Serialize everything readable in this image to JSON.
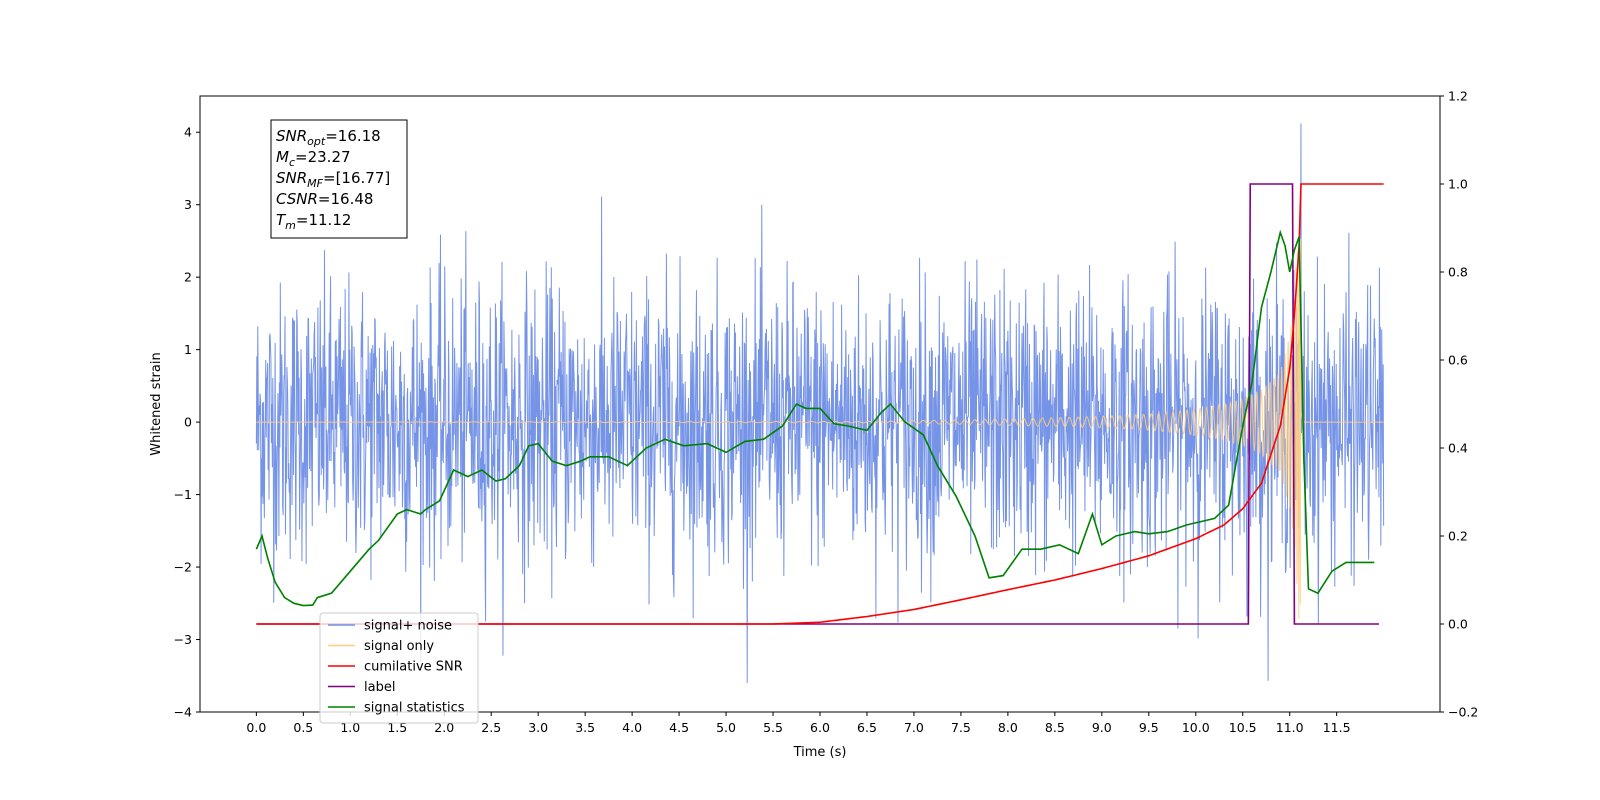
{
  "chart_data": {
    "type": "line",
    "xlabel": "Time (s)",
    "ylabel": "Whitened strain",
    "xlim": [
      -0.6,
      12.6
    ],
    "ylim_left": [
      -4,
      4.5
    ],
    "ylim_right": [
      -0.2,
      1.2
    ],
    "x_ticks": [
      0.0,
      0.5,
      1.0,
      1.5,
      2.0,
      2.5,
      3.0,
      3.5,
      4.0,
      4.5,
      5.0,
      5.5,
      6.0,
      6.5,
      7.0,
      7.5,
      8.0,
      8.5,
      9.0,
      9.5,
      10.0,
      10.5,
      11.0,
      11.5
    ],
    "x_tick_labels": [
      "0.0",
      "0.5",
      "1.0",
      "1.5",
      "2.0",
      "2.5",
      "3.0",
      "3.5",
      "4.0",
      "4.5",
      "5.0",
      "5.5",
      "6.0",
      "6.5",
      "7.0",
      "7.5",
      "8.0",
      "8.5",
      "9.0",
      "9.5",
      "10.0",
      "10.5",
      "11.0",
      "11.5"
    ],
    "y_left_ticks": [
      -4,
      -3,
      -2,
      -1,
      0,
      1,
      2,
      3,
      4
    ],
    "y_left_tick_labels": [
      "−4",
      "−3",
      "−2",
      "−1",
      "0",
      "1",
      "2",
      "3",
      "4"
    ],
    "y_right_ticks": [
      -0.2,
      0.0,
      0.2,
      0.4,
      0.6,
      0.8,
      1.0,
      1.2
    ],
    "y_right_tick_labels": [
      "−0.2",
      "0.0",
      "0.2",
      "0.4",
      "0.6",
      "0.8",
      "1.0",
      "1.2"
    ],
    "info_box": [
      {
        "base": "SNR",
        "sub": "opt",
        "rest": "=16.18"
      },
      {
        "base": "M",
        "sub": "c",
        "rest": "=23.27"
      },
      {
        "base": "SNR",
        "sub": "MF",
        "rest": "=[16.77]"
      },
      {
        "base": "CSNR",
        "sub": "",
        "rest": "=16.48"
      },
      {
        "base": "T",
        "sub": "m",
        "rest": "=11.12"
      }
    ],
    "legend": [
      {
        "label": "signal+ noise",
        "color": "#6f8ee6"
      },
      {
        "label": "signal only",
        "color": "#ffcc80"
      },
      {
        "label": "cumilative SNR",
        "color": "#ff0000"
      },
      {
        "label": "label",
        "color": "#800080"
      },
      {
        "label": "signal statistics",
        "color": "#008000"
      }
    ],
    "legend_loc": "lower left",
    "series": [
      {
        "name": "signal+ noise",
        "axis": "left",
        "color": "#6f8ee6",
        "kind": "noise",
        "x_range": [
          0.0,
          12.0
        ],
        "amplitude_peak_range": [
          -3.6,
          3.4
        ],
        "max_spike": {
          "x": 11.12,
          "y": 4.12
        }
      },
      {
        "name": "signal only",
        "axis": "left",
        "color": "#ffcc80",
        "kind": "chirp",
        "x_range": [
          0.0,
          12.0
        ],
        "merger_time": 11.12,
        "amplitude_points": {
          "x": [
            0.0,
            6.5,
            7.5,
            8.5,
            9.0,
            9.5,
            10.0,
            10.3,
            10.5,
            10.7,
            10.9,
            11.0,
            11.05,
            11.1,
            11.12,
            11.14,
            12.0
          ],
          "y": [
            0.0,
            0.01,
            0.03,
            0.06,
            0.08,
            0.11,
            0.18,
            0.25,
            0.32,
            0.45,
            0.7,
            1.2,
            1.8,
            2.8,
            3.3,
            0.0,
            0.0
          ]
        }
      },
      {
        "name": "cumilative SNR",
        "axis": "right",
        "color": "#ff0000",
        "x": [
          0.0,
          5.5,
          6.0,
          6.5,
          7.0,
          7.5,
          8.0,
          8.5,
          9.0,
          9.5,
          10.0,
          10.3,
          10.5,
          10.7,
          10.9,
          11.0,
          11.05,
          11.1,
          11.12,
          12.0
        ],
        "y": [
          0.0,
          0.0,
          0.004,
          0.017,
          0.033,
          0.055,
          0.078,
          0.1,
          0.126,
          0.155,
          0.194,
          0.225,
          0.262,
          0.32,
          0.45,
          0.58,
          0.7,
          0.86,
          1.0,
          1.0
        ]
      },
      {
        "name": "label",
        "axis": "right",
        "color": "#800080",
        "x": [
          0.0,
          10.56,
          10.58,
          11.03,
          11.05,
          11.95
        ],
        "y": [
          0.0,
          0.0,
          1.0,
          1.0,
          0.0,
          0.0
        ]
      },
      {
        "name": "signal statistics",
        "axis": "right",
        "color": "#008000",
        "x": [
          0.0,
          0.06,
          0.12,
          0.2,
          0.3,
          0.4,
          0.5,
          0.6,
          0.65,
          0.8,
          1.0,
          1.2,
          1.3,
          1.5,
          1.6,
          1.75,
          1.8,
          1.95,
          2.1,
          2.25,
          2.4,
          2.55,
          2.65,
          2.8,
          2.9,
          3.0,
          3.15,
          3.3,
          3.45,
          3.55,
          3.75,
          3.95,
          4.15,
          4.35,
          4.55,
          4.8,
          5.0,
          5.2,
          5.4,
          5.6,
          5.75,
          5.85,
          6.0,
          6.15,
          6.3,
          6.5,
          6.65,
          6.75,
          6.9,
          7.1,
          7.25,
          7.45,
          7.65,
          7.8,
          7.95,
          8.15,
          8.35,
          8.55,
          8.75,
          8.9,
          9.0,
          9.15,
          9.35,
          9.5,
          9.7,
          9.9,
          10.1,
          10.2,
          10.35,
          10.5,
          10.6,
          10.7,
          10.8,
          10.9,
          10.95,
          11.0,
          11.05,
          11.1,
          11.15,
          11.2,
          11.3,
          11.45,
          11.6,
          11.75,
          11.9
        ],
        "y": [
          0.17,
          0.2,
          0.15,
          0.095,
          0.06,
          0.047,
          0.042,
          0.043,
          0.06,
          0.07,
          0.12,
          0.17,
          0.19,
          0.25,
          0.26,
          0.25,
          0.26,
          0.28,
          0.35,
          0.335,
          0.35,
          0.325,
          0.33,
          0.36,
          0.405,
          0.41,
          0.37,
          0.36,
          0.37,
          0.38,
          0.38,
          0.36,
          0.4,
          0.42,
          0.405,
          0.41,
          0.39,
          0.415,
          0.42,
          0.45,
          0.5,
          0.49,
          0.49,
          0.455,
          0.45,
          0.44,
          0.48,
          0.5,
          0.46,
          0.43,
          0.36,
          0.29,
          0.2,
          0.105,
          0.11,
          0.17,
          0.17,
          0.18,
          0.16,
          0.25,
          0.18,
          0.2,
          0.21,
          0.205,
          0.21,
          0.225,
          0.235,
          0.24,
          0.27,
          0.45,
          0.55,
          0.72,
          0.8,
          0.89,
          0.86,
          0.8,
          0.85,
          0.88,
          0.38,
          0.08,
          0.07,
          0.12,
          0.14,
          0.14,
          0.14
        ]
      }
    ]
  }
}
